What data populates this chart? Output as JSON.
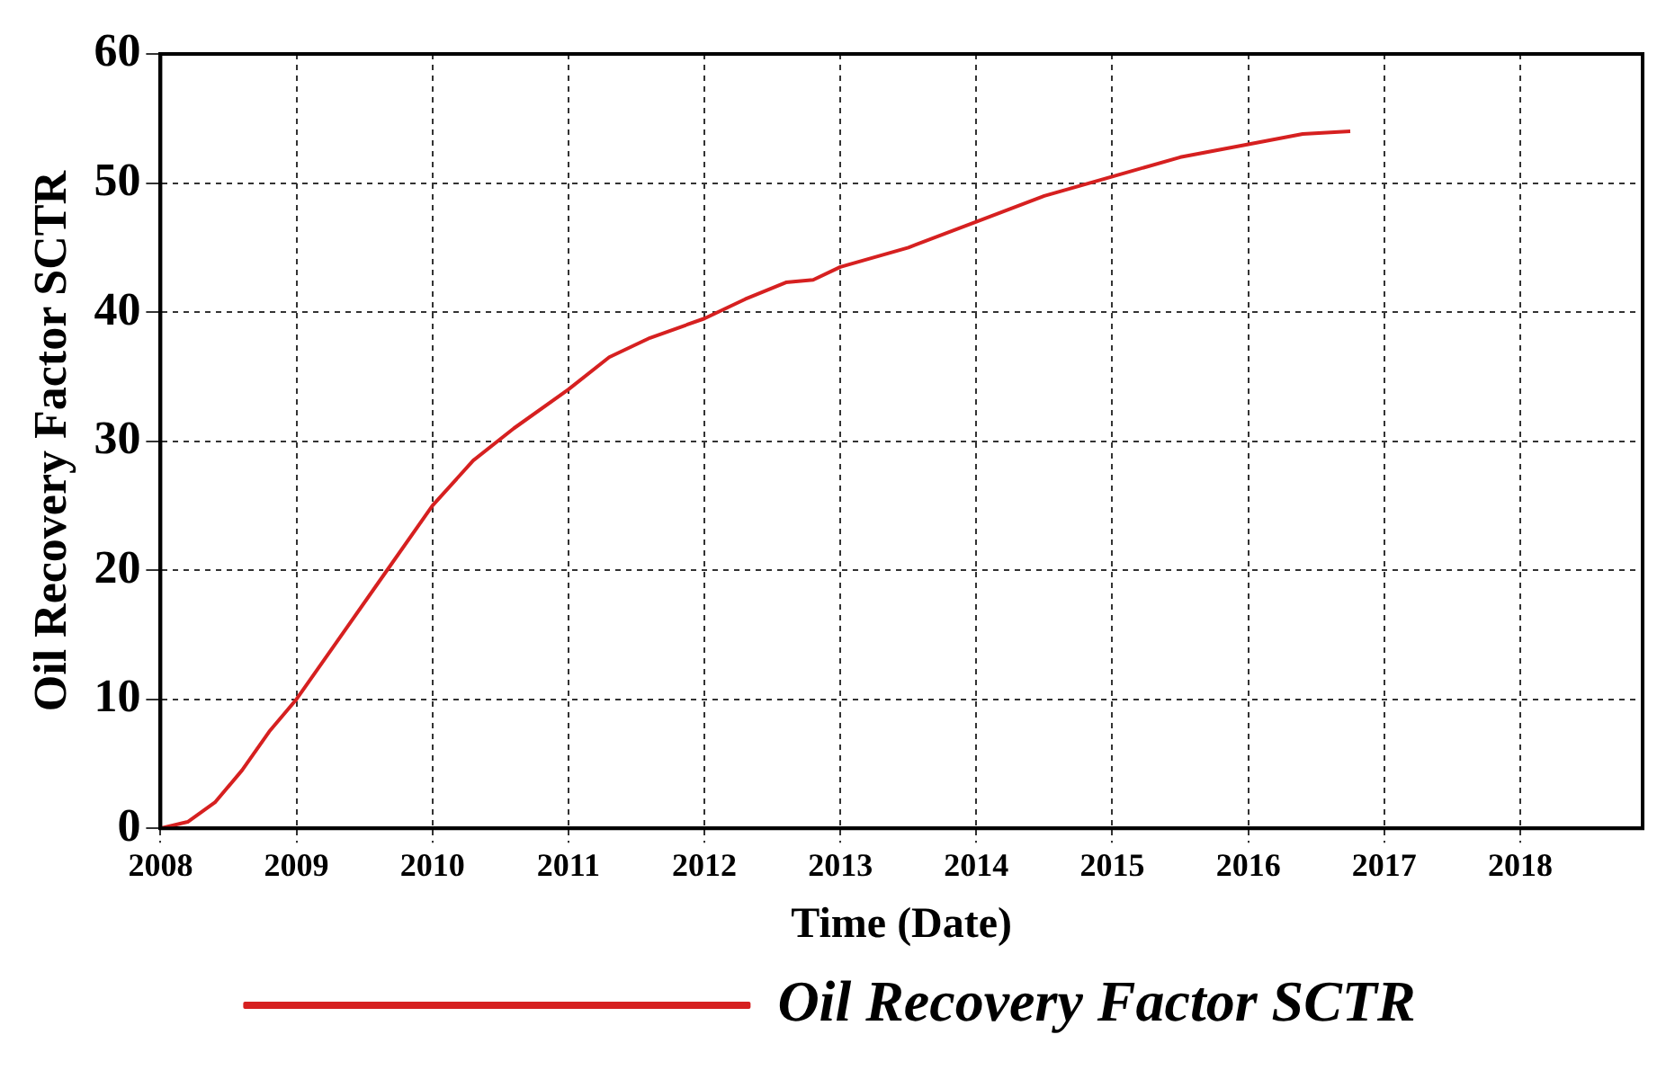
{
  "chart_data": {
    "type": "line",
    "xlabel": "Time (Date)",
    "ylabel": "Oil Recovery Factor SCTR",
    "x": [
      2008.0,
      2008.2,
      2008.4,
      2008.6,
      2008.8,
      2009.0,
      2009.3,
      2009.6,
      2010.0,
      2010.3,
      2010.6,
      2011.0,
      2011.3,
      2011.6,
      2012.0,
      2012.3,
      2012.6,
      2012.8,
      2013.0,
      2013.5,
      2014.0,
      2014.5,
      2015.0,
      2015.5,
      2016.0,
      2016.4,
      2016.75
    ],
    "series": [
      {
        "name": "Oil Recovery Factor SCTR",
        "color": "#d62020",
        "values": [
          0,
          0.5,
          2,
          4.5,
          7.5,
          10,
          14.5,
          19,
          25,
          28.5,
          31,
          34,
          36.5,
          38,
          39.5,
          41,
          42.3,
          42.5,
          43.5,
          45,
          47,
          49,
          50.5,
          52,
          53,
          53.8,
          54
        ]
      }
    ],
    "xlim": [
      2008,
      2018.9
    ],
    "xticks": [
      2008,
      2009,
      2010,
      2011,
      2012,
      2013,
      2014,
      2015,
      2016,
      2017,
      2018
    ],
    "ylim": [
      0,
      60
    ],
    "yticks": [
      0,
      10,
      20,
      30,
      40,
      50,
      60
    ],
    "grid": true,
    "legend": "bottom",
    "marker": "none",
    "line_style": "solid"
  }
}
